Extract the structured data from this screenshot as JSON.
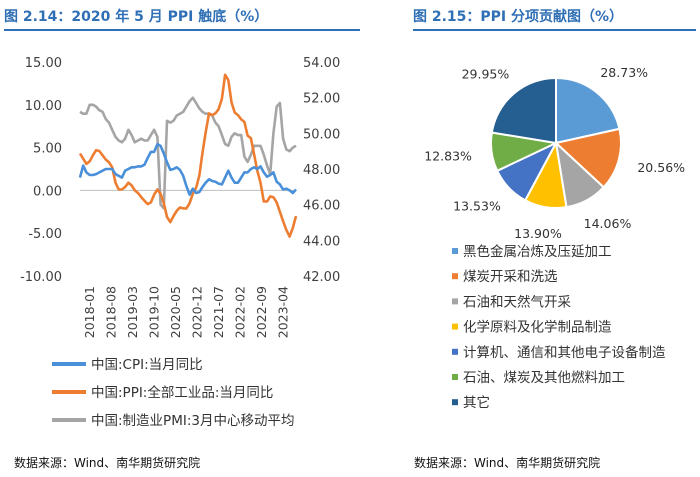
{
  "left_panel": {
    "title": "图 2.14：2020 年 5 月 PPI 触底（%）",
    "source": "数据来源：Wind、南华期货研究院"
  },
  "right_panel": {
    "title": "图 2.15：PPI 分项贡献图（%）",
    "source": "数据来源：Wind、南华期货研究院"
  },
  "chart_data": [
    {
      "type": "line",
      "x_tick_labels": [
        "2018-01",
        "2018-08",
        "2019-03",
        "2019-10",
        "2020-05",
        "2020-12",
        "2021-07",
        "2022-02",
        "2022-09",
        "2023-04"
      ],
      "y_left_ticks": [
        "15.00",
        "10.00",
        "5.00",
        "0.00",
        "-5.00",
        "-10.00"
      ],
      "y_right_ticks": [
        "54.00",
        "52.00",
        "50.00",
        "48.00",
        "46.00",
        "44.00",
        "42.00"
      ],
      "ylim_left": [
        -10,
        15
      ],
      "ylim_right": [
        42,
        54
      ],
      "grid": false,
      "legend_position": "bottom",
      "series": [
        {
          "name": "中国:CPI:当月同比",
          "axis": "left",
          "color": "#4a90d9",
          "values": [
            1.5,
            2.9,
            2.1,
            1.8,
            1.8,
            1.9,
            2.1,
            2.3,
            2.5,
            2.5,
            2.5,
            1.9,
            1.7,
            1.5,
            2.3,
            2.5,
            2.7,
            2.7,
            2.8,
            2.8,
            3.0,
            3.8,
            4.5,
            4.5,
            5.4,
            5.2,
            4.3,
            3.3,
            2.4,
            2.5,
            2.7,
            2.4,
            1.7,
            0.5,
            -0.5,
            0.2,
            -0.3,
            -0.2,
            0.4,
            0.9,
            1.3,
            1.1,
            1.0,
            0.8,
            0.7,
            1.5,
            2.3,
            1.5,
            0.9,
            0.9,
            1.5,
            2.1,
            2.1,
            2.5,
            2.7,
            2.5,
            2.8,
            2.1,
            1.6,
            1.8,
            2.1,
            1.0,
            0.7,
            0.1,
            0.2,
            0.0,
            -0.3,
            0.1
          ],
          "x_start": "2018-01"
        },
        {
          "name": "中国:PPI:全部工业品:当月同比",
          "axis": "left",
          "color": "#ed7d31",
          "values": [
            4.3,
            3.7,
            3.1,
            3.4,
            4.1,
            4.7,
            4.6,
            4.1,
            3.6,
            3.3,
            2.7,
            0.9,
            0.1,
            0.1,
            0.4,
            0.9,
            0.6,
            0.0,
            -0.3,
            -0.8,
            -1.2,
            -1.6,
            -1.4,
            -0.5,
            0.1,
            -0.4,
            -1.5,
            -3.1,
            -3.7,
            -3.0,
            -2.4,
            -2.0,
            -2.1,
            -2.1,
            -1.5,
            -0.4,
            0.3,
            1.7,
            4.4,
            6.8,
            9.0,
            8.8,
            9.0,
            9.5,
            10.7,
            13.5,
            12.9,
            10.3,
            9.1,
            8.8,
            8.3,
            8.0,
            6.4,
            6.1,
            4.2,
            2.3,
            0.9,
            -1.3,
            -1.3,
            -0.7,
            -0.8,
            -1.4,
            -2.5,
            -3.6,
            -4.6,
            -5.4,
            -4.4,
            -3.0
          ],
          "x_start": "2018-01"
        },
        {
          "name": "中国:制造业PMI:3月中心移动平均",
          "axis": "right",
          "color": "#a5a5a5",
          "values": [
            51.2,
            51.1,
            51.1,
            51.6,
            51.6,
            51.5,
            51.3,
            51.2,
            50.8,
            50.6,
            50.2,
            49.8,
            49.6,
            49.5,
            49.7,
            50.2,
            49.9,
            49.5,
            49.6,
            49.7,
            49.6,
            49.6,
            49.9,
            50.2,
            49.8,
            46.0,
            45.8,
            50.7,
            50.6,
            50.7,
            51.0,
            51.1,
            51.2,
            51.5,
            51.8,
            52.0,
            51.7,
            51.4,
            51.2,
            51.1,
            51.1,
            51.0,
            50.6,
            50.4,
            49.9,
            49.4,
            49.3,
            49.8,
            50.0,
            49.9,
            49.9,
            48.7,
            48.4,
            48.8,
            49.3,
            49.3,
            49.3,
            48.8,
            48.2,
            47.7,
            50.0,
            51.5,
            51.7,
            49.7,
            49.1,
            49.0,
            49.2,
            49.3
          ],
          "x_start": "2018-01"
        }
      ]
    },
    {
      "type": "pie",
      "labels": [
        "黑色金属冶炼及压延加工",
        "煤炭开采和洗选",
        "石油和天然气开采",
        "化学原料及化学制品制造",
        "计算机、通信和其他电子设备制造",
        "石油、煤炭及其他燃料加工",
        "其它"
      ],
      "values": [
        28.73,
        20.56,
        14.06,
        13.9,
        13.53,
        12.83,
        29.95
      ],
      "value_labels": [
        "28.73%",
        "20.56%",
        "14.06%",
        "13.90%",
        "13.53%",
        "12.83%",
        "29.95%"
      ],
      "colors": [
        "#5b9bd5",
        "#ed7d31",
        "#a5a5a5",
        "#ffc000",
        "#4472c4",
        "#70ad47",
        "#255e91"
      ],
      "legend_position": "bottom"
    }
  ]
}
